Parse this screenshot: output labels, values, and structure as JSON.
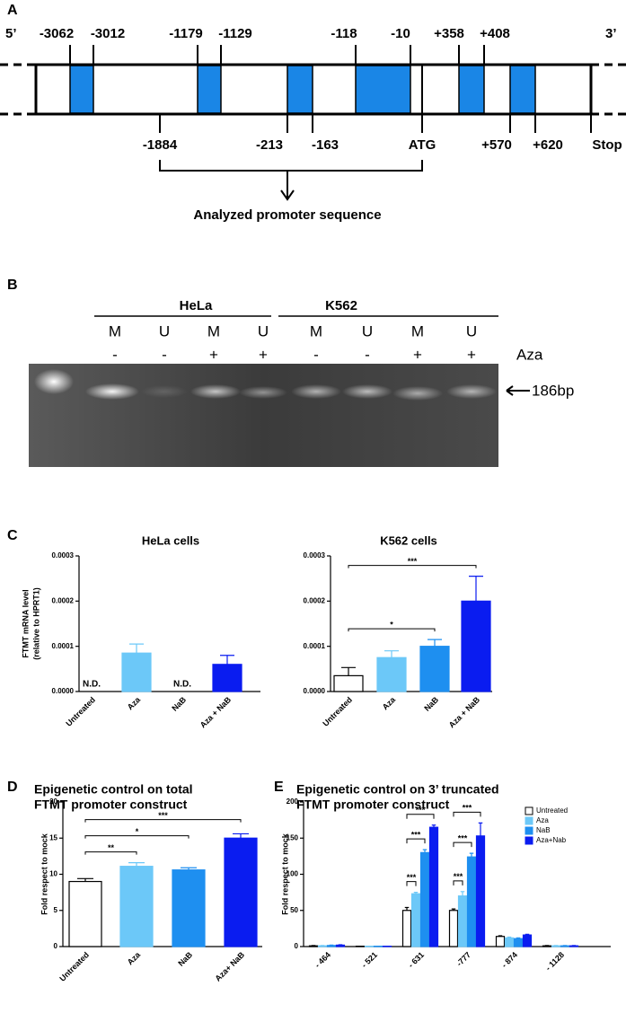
{
  "diagram": {
    "letter": "A",
    "five_prime": "5’",
    "three_prime": "3’",
    "top_labels": [
      "-3062",
      "-3012",
      "-1179",
      "-1129",
      "-118",
      "-10",
      "+358",
      "+408"
    ],
    "bottom_labels": [
      "-1884",
      "-213",
      "-163",
      "ATG",
      "+570",
      "+620",
      "Stop"
    ],
    "caption": "Analyzed promoter sequence"
  },
  "gel": {
    "letter": "B",
    "groups": [
      "HeLa",
      "K562"
    ],
    "lanes": [
      "M",
      "U",
      "M",
      "U",
      "M",
      "U",
      "M",
      "U"
    ],
    "treatment": [
      "-",
      "-",
      "+",
      "+",
      "-",
      "-",
      "+",
      "+"
    ],
    "treatment_label": "Aza",
    "band_label": "186bp"
  },
  "letters": {
    "c": "C",
    "d": "D",
    "e": "E"
  },
  "chart_data": [
    {
      "type": "bar",
      "title": "HeLa cells",
      "ylabel": [
        "FTMT mRNA level",
        "(relative to HPRT1)"
      ],
      "categories": [
        "Untreated",
        "Aza",
        "NaB",
        "Aza + NaB"
      ],
      "values": [
        null,
        8.5e-05,
        null,
        6e-05
      ],
      "errors": [
        null,
        2e-05,
        null,
        2e-05
      ],
      "value_labels": [
        "N.D.",
        null,
        "N.D.",
        null
      ],
      "colors": [
        "#ffffff",
        "#6cc8f8",
        "#1e8ff0",
        "#0a1cf0"
      ],
      "ylim": [
        0,
        0.0003
      ],
      "yticks": [
        {
          "value": 0,
          "label": "0.0000"
        },
        0.0001,
        0.0002,
        0.0003
      ]
    },
    {
      "type": "bar",
      "title": "K562 cells",
      "categories": [
        "Untreated",
        "Aza",
        "NaB",
        "Aza + NaB"
      ],
      "values": [
        3.5e-05,
        7.5e-05,
        0.0001,
        0.0002
      ],
      "errors": [
        1.8e-05,
        1.5e-05,
        1.5e-05,
        5.5e-05
      ],
      "colors": [
        "#ffffff",
        "#6cc8f8",
        "#1e8ff0",
        "#0a1cf0"
      ],
      "ylim": [
        0,
        0.0003
      ],
      "yticks": [
        {
          "value": 0,
          "label": "0.0000"
        },
        0.0001,
        0.0002,
        0.0003
      ],
      "brackets": [
        {
          "from": "Untreated",
          "to": "NaB",
          "label": "*"
        },
        {
          "from": "Untreated",
          "to": "Aza + NaB",
          "label": "***"
        }
      ]
    },
    {
      "type": "bar",
      "title": [
        "Epigenetic control on total",
        "FTMT promoter construct"
      ],
      "ylabel": "Fold respect to mock",
      "categories": [
        "Untreated",
        "Aza",
        "NaB",
        "Aza+ NaB"
      ],
      "values": [
        9.0,
        11.1,
        10.6,
        15.0
      ],
      "errors": [
        0.4,
        0.5,
        0.3,
        0.6
      ],
      "colors": [
        "#ffffff",
        "#6cc8f8",
        "#1e8ff0",
        "#0a1cf0"
      ],
      "ylim": [
        0,
        20
      ],
      "yticks": [
        0,
        5,
        10,
        15,
        20
      ],
      "brackets": [
        {
          "from": "Untreated",
          "to": "Aza",
          "label": "**"
        },
        {
          "from": "Untreated",
          "to": "NaB",
          "label": "*"
        },
        {
          "from": "Untreated",
          "to": "Aza+ NaB",
          "label": "***"
        }
      ]
    },
    {
      "type": "grouped-bar",
      "title": [
        "Epigenetic control on 3’ truncated",
        "FTMT promoter construct"
      ],
      "ylabel": "Fold respect to mock",
      "categories": [
        "- 464",
        "- 521",
        "- 631",
        "-777",
        "- 874",
        "- 1128"
      ],
      "series": [
        {
          "name": "Untreated",
          "color": "#ffffff",
          "values": [
            1,
            0.5,
            50,
            50,
            14,
            1
          ],
          "errors": [
            0.5,
            0,
            4,
            2,
            1,
            0.5
          ]
        },
        {
          "name": "Aza",
          "color": "#6cc8f8",
          "values": [
            1,
            0.5,
            73,
            70,
            12,
            1
          ],
          "errors": [
            0.5,
            0,
            2,
            6,
            1,
            0.5
          ]
        },
        {
          "name": "NaB",
          "color": "#1e8ff0",
          "values": [
            1.5,
            0.5,
            130,
            124,
            11,
            1
          ],
          "errors": [
            0.5,
            0,
            4,
            5,
            1,
            0.5
          ]
        },
        {
          "name": "Aza+Nab",
          "color": "#0a1cf0",
          "values": [
            2,
            0.5,
            165,
            153,
            16,
            1
          ],
          "errors": [
            0.5,
            0,
            3,
            18,
            1,
            0.5
          ]
        }
      ],
      "ylim": [
        0,
        200
      ],
      "yticks": [
        0,
        50,
        100,
        150,
        200
      ],
      "brackets": [
        {
          "category": "- 631",
          "from": "Untreated",
          "to": "Aza",
          "label": "***"
        },
        {
          "category": "- 631",
          "from": "Untreated",
          "to": "NaB",
          "label": "***"
        },
        {
          "category": "- 631",
          "from": "Untreated",
          "to": "Aza+Nab",
          "label": "***"
        },
        {
          "category": "-777",
          "from": "Untreated",
          "to": "Aza",
          "label": "***"
        },
        {
          "category": "-777",
          "from": "Untreated",
          "to": "NaB",
          "label": "***"
        },
        {
          "category": "-777",
          "from": "Untreated",
          "to": "Aza+Nab",
          "label": "***"
        }
      ],
      "legend": "upper right"
    }
  ]
}
